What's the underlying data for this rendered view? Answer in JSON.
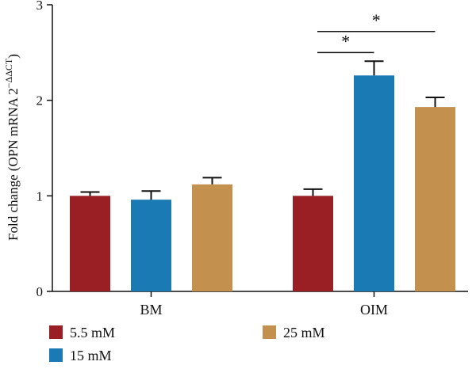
{
  "chart_data": {
    "type": "bar",
    "categories": [
      "BM",
      "OIM"
    ],
    "series": [
      {
        "name": "5.5 mM",
        "color": "#9a1f24",
        "values": [
          1.0,
          1.0
        ],
        "errors": [
          0.04,
          0.07
        ]
      },
      {
        "name": "15 mM",
        "color": "#1a7ab3",
        "values": [
          0.96,
          2.26
        ],
        "errors": [
          0.09,
          0.15
        ]
      },
      {
        "name": "25 mM",
        "color": "#c4904e",
        "values": [
          1.12,
          1.93
        ],
        "errors": [
          0.07,
          0.1
        ]
      }
    ],
    "ylim": [
      0,
      3
    ],
    "yticks": [
      0,
      1,
      2,
      3
    ],
    "ylabel_main": "Fold change (OPN mRNA 2",
    "ylabel_sup": "−ΔΔCT",
    "ylabel_end": ")",
    "significance": [
      {
        "group": 1,
        "from": 0,
        "to": 1,
        "y": 2.5,
        "label": "*"
      },
      {
        "group": 1,
        "from": 0,
        "to": 2,
        "y": 2.72,
        "label": "*"
      }
    ],
    "legend_placement": "bottom"
  }
}
